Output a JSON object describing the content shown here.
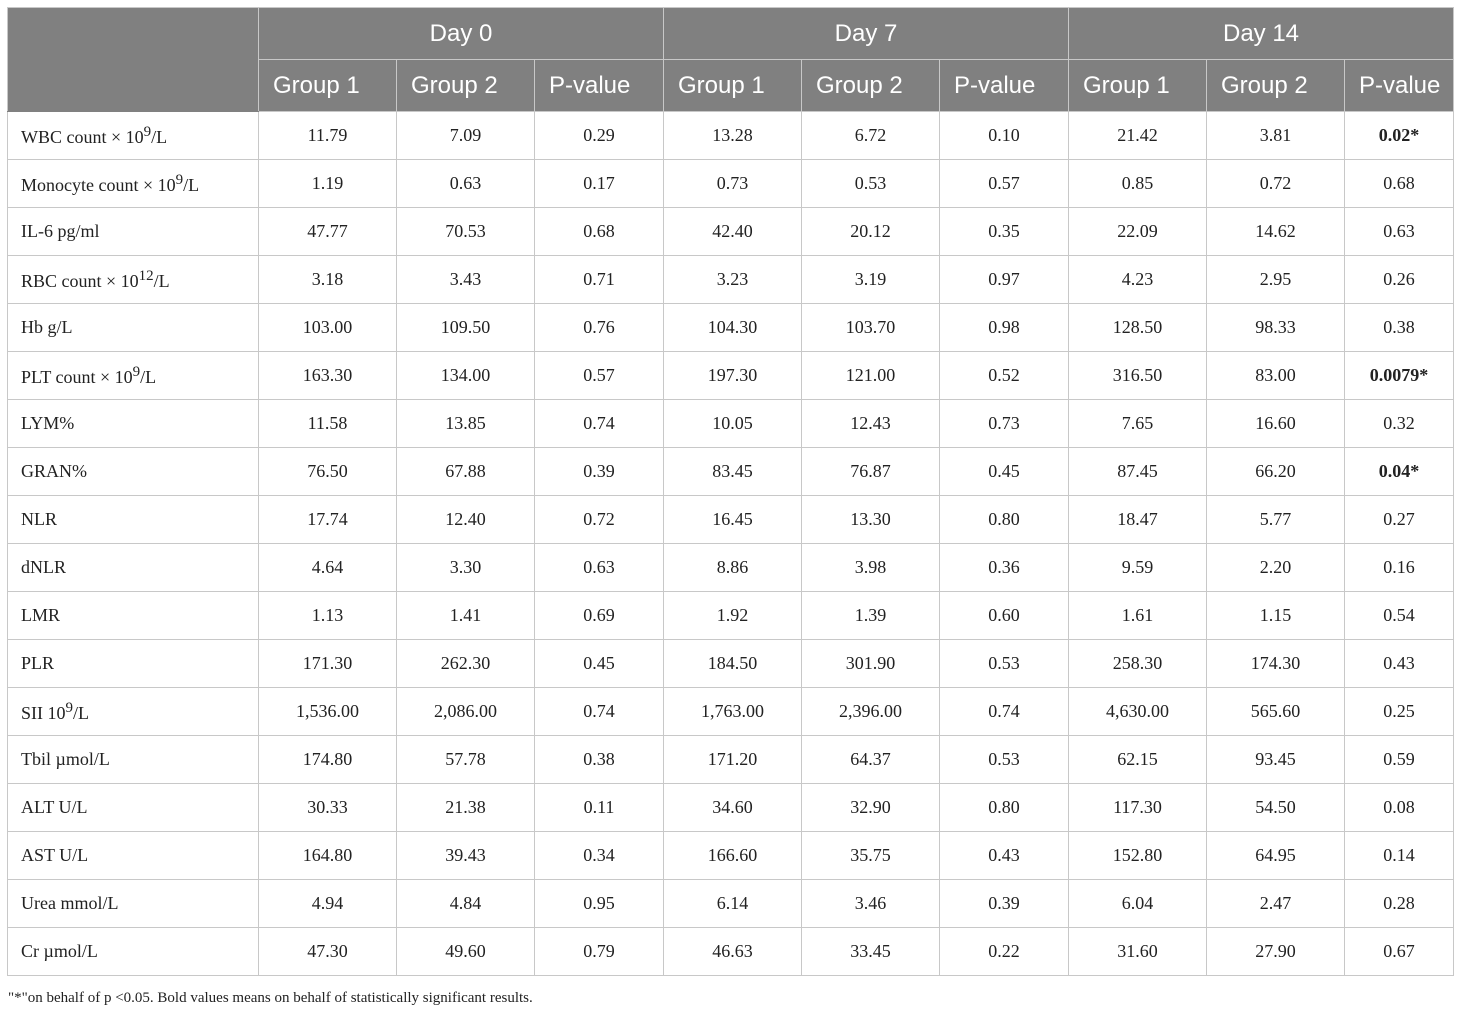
{
  "header": {
    "days": [
      "Day 0",
      "Day 7",
      "Day 14"
    ],
    "sub": [
      "Group 1",
      "Group 2",
      "P-value"
    ]
  },
  "rows": [
    {
      "label": "WBC count × 10",
      "sup": "9",
      "suffix": "/L",
      "values": [
        "11.79",
        "7.09",
        "0.29",
        "13.28",
        "6.72",
        "0.10",
        "21.42",
        "3.81",
        "0.02*"
      ],
      "bold": [
        8
      ]
    },
    {
      "label": "Monocyte count × 10",
      "sup": "9",
      "suffix": "/L",
      "values": [
        "1.19",
        "0.63",
        "0.17",
        "0.73",
        "0.53",
        "0.57",
        "0.85",
        "0.72",
        "0.68"
      ],
      "bold": []
    },
    {
      "label": "IL-6 pg/ml",
      "sup": "",
      "suffix": "",
      "values": [
        "47.77",
        "70.53",
        "0.68",
        "42.40",
        "20.12",
        "0.35",
        "22.09",
        "14.62",
        "0.63"
      ],
      "bold": []
    },
    {
      "label": "RBC count × 10",
      "sup": "12",
      "suffix": "/L",
      "values": [
        "3.18",
        "3.43",
        "0.71",
        "3.23",
        "3.19",
        "0.97",
        "4.23",
        "2.95",
        "0.26"
      ],
      "bold": []
    },
    {
      "label": "Hb g/L",
      "sup": "",
      "suffix": "",
      "values": [
        "103.00",
        "109.50",
        "0.76",
        "104.30",
        "103.70",
        "0.98",
        "128.50",
        "98.33",
        "0.38"
      ],
      "bold": []
    },
    {
      "label": "PLT count × 10",
      "sup": "9",
      "suffix": "/L",
      "values": [
        "163.30",
        "134.00",
        "0.57",
        "197.30",
        "121.00",
        "0.52",
        "316.50",
        "83.00",
        "0.0079*"
      ],
      "bold": [
        8
      ]
    },
    {
      "label": "LYM%",
      "sup": "",
      "suffix": "",
      "values": [
        "11.58",
        "13.85",
        "0.74",
        "10.05",
        "12.43",
        "0.73",
        "7.65",
        "16.60",
        "0.32"
      ],
      "bold": []
    },
    {
      "label": "GRAN%",
      "sup": "",
      "suffix": "",
      "values": [
        "76.50",
        "67.88",
        "0.39",
        "83.45",
        "76.87",
        "0.45",
        "87.45",
        "66.20",
        "0.04*"
      ],
      "bold": [
        8
      ]
    },
    {
      "label": "NLR",
      "sup": "",
      "suffix": "",
      "values": [
        "17.74",
        "12.40",
        "0.72",
        "16.45",
        "13.30",
        "0.80",
        "18.47",
        "5.77",
        "0.27"
      ],
      "bold": []
    },
    {
      "label": "dNLR",
      "sup": "",
      "suffix": "",
      "values": [
        "4.64",
        "3.30",
        "0.63",
        "8.86",
        "3.98",
        "0.36",
        "9.59",
        "2.20",
        "0.16"
      ],
      "bold": []
    },
    {
      "label": "LMR",
      "sup": "",
      "suffix": "",
      "values": [
        "1.13",
        "1.41",
        "0.69",
        "1.92",
        "1.39",
        "0.60",
        "1.61",
        "1.15",
        "0.54"
      ],
      "bold": []
    },
    {
      "label": "PLR",
      "sup": "",
      "suffix": "",
      "values": [
        "171.30",
        "262.30",
        "0.45",
        "184.50",
        "301.90",
        "0.53",
        "258.30",
        "174.30",
        "0.43"
      ],
      "bold": []
    },
    {
      "label": "SII 10",
      "sup": "9",
      "suffix": "/L",
      "values": [
        "1,536.00",
        "2,086.00",
        "0.74",
        "1,763.00",
        "2,396.00",
        "0.74",
        "4,630.00",
        "565.60",
        "0.25"
      ],
      "bold": []
    },
    {
      "label": "Tbil µmol/L",
      "sup": "",
      "suffix": "",
      "values": [
        "174.80",
        "57.78",
        "0.38",
        "171.20",
        "64.37",
        "0.53",
        "62.15",
        "93.45",
        "0.59"
      ],
      "bold": []
    },
    {
      "label": "ALT U/L",
      "sup": "",
      "suffix": "",
      "values": [
        "30.33",
        "21.38",
        "0.11",
        "34.60",
        "32.90",
        "0.80",
        "117.30",
        "54.50",
        "0.08"
      ],
      "bold": []
    },
    {
      "label": "AST U/L",
      "sup": "",
      "suffix": "",
      "values": [
        "164.80",
        "39.43",
        "0.34",
        "166.60",
        "35.75",
        "0.43",
        "152.80",
        "64.95",
        "0.14"
      ],
      "bold": []
    },
    {
      "label": "Urea mmol/L",
      "sup": "",
      "suffix": "",
      "values": [
        "4.94",
        "4.84",
        "0.95",
        "6.14",
        "3.46",
        "0.39",
        "6.04",
        "2.47",
        "0.28"
      ],
      "bold": []
    },
    {
      "label": "Cr µmol/L",
      "sup": "",
      "suffix": "",
      "values": [
        "47.30",
        "49.60",
        "0.79",
        "46.63",
        "33.45",
        "0.22",
        "31.60",
        "27.90",
        "0.67"
      ],
      "bold": []
    }
  ],
  "footnote": "\"*\"on behalf of p <0.05. Bold values means on behalf of statistically significant results."
}
